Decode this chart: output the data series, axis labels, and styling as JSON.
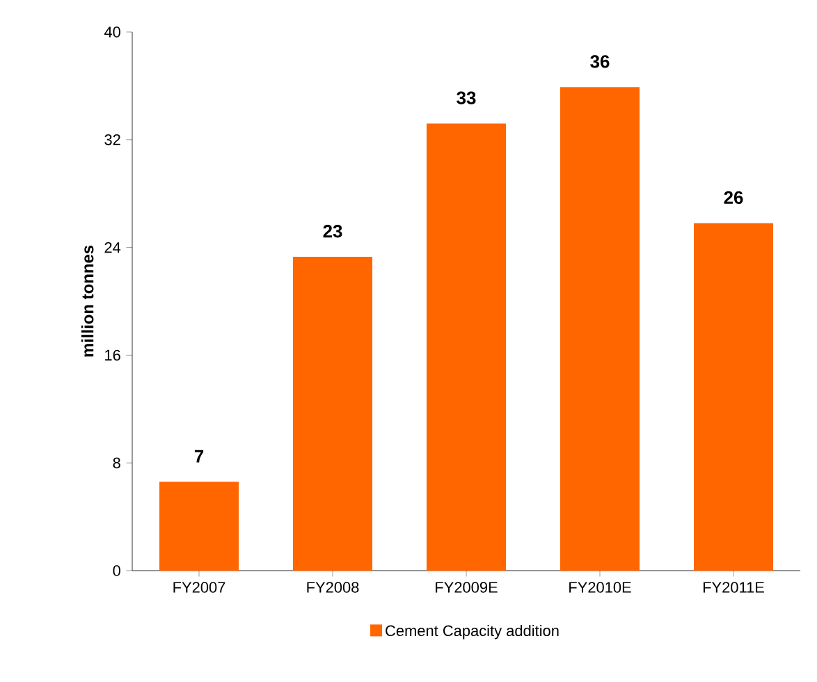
{
  "chart_data": {
    "type": "bar",
    "ylabel": "million tonnes",
    "categories": [
      "FY2007",
      "FY2008",
      "FY2009E",
      "FY2010E",
      "FY2011E"
    ],
    "series": [
      {
        "name": "Cement Capacity addition",
        "color": "#ff6600",
        "values": [
          6.6,
          23.3,
          33.2,
          35.9,
          25.8
        ],
        "value_labels": [
          "7",
          "23",
          "33",
          "36",
          "26"
        ]
      }
    ],
    "ylim": [
      0,
      40
    ],
    "yticks": [
      0,
      8,
      16,
      24,
      32,
      40
    ],
    "legend": "bottom",
    "grid": false
  }
}
